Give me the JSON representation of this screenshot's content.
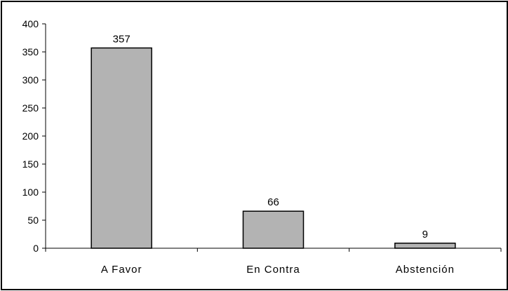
{
  "chart_data": {
    "type": "bar",
    "categories": [
      "A Favor",
      "En Contra",
      "Abstención"
    ],
    "values": [
      357,
      66,
      9
    ],
    "data_labels": [
      "357",
      "66",
      "9"
    ],
    "title": "",
    "xlabel": "",
    "ylabel": "",
    "ylim": [
      0,
      400
    ],
    "y_ticks": [
      0,
      50,
      100,
      150,
      200,
      250,
      300,
      350,
      400
    ],
    "y_tick_labels": [
      "0",
      "50",
      "100",
      "150",
      "200",
      "250",
      "300",
      "350",
      "400"
    ],
    "grid": false,
    "legend": "none",
    "colors": {
      "bar_fill": "#b3b3b3",
      "bar_stroke": "#000000",
      "axis": "#000000",
      "background": "#ffffff"
    }
  }
}
